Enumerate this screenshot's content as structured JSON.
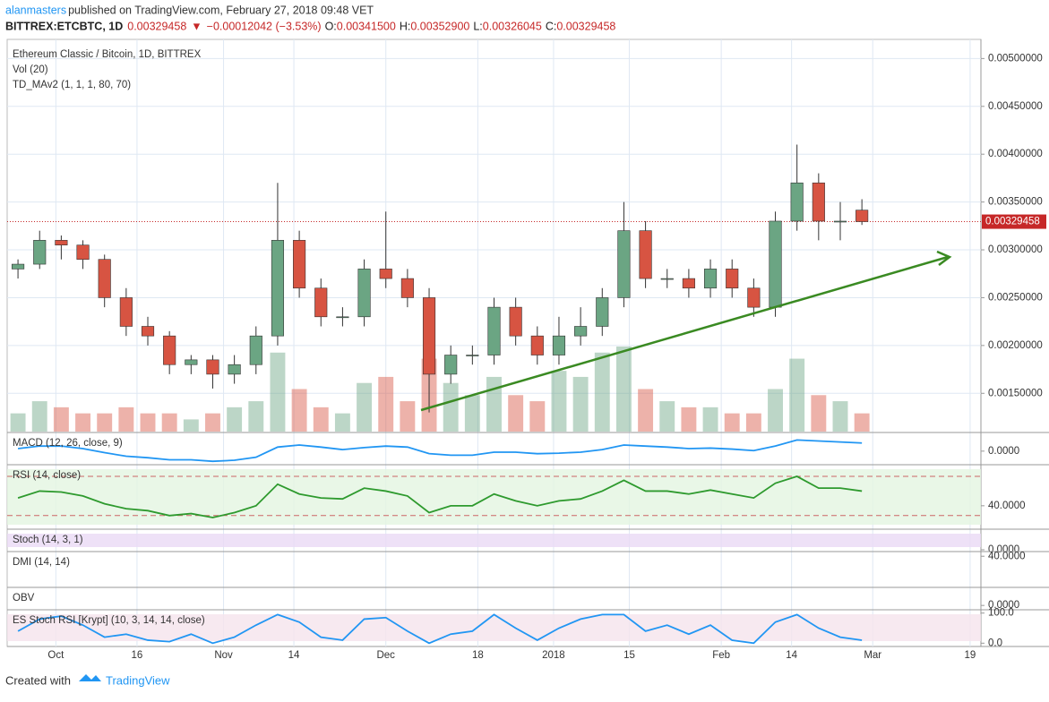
{
  "header": {
    "author": "alanmasters",
    "published": " published on TradingView.com, February 27, 2018 09:48 VET",
    "symbol": "BITTREX:ETCBTC, 1D",
    "price": "0.00329458",
    "arrow": "▼",
    "change": "−0.00012042 (−3.53%)",
    "ohlc": [
      {
        "key": "O:",
        "value": "0.00341500"
      },
      {
        "key": "H:",
        "value": "0.00352900"
      },
      {
        "key": "L:",
        "value": "0.00326045"
      },
      {
        "key": "C:",
        "value": "0.00329458"
      }
    ]
  },
  "footer": {
    "created": "Created with",
    "brand": "TradingView"
  },
  "chart_data": {
    "type": "candlestick",
    "legend": [
      "Ethereum Classic / Bitcoin, 1D, BITTREX",
      "Vol (20)",
      "TD_MAv2 (1, 1, 1, 80, 70)"
    ],
    "x": [
      -7,
      -3,
      1,
      5,
      9,
      13,
      17,
      21,
      25,
      29,
      33,
      37,
      41,
      45,
      49,
      53,
      57,
      61,
      65,
      69,
      73,
      77,
      81,
      85,
      89,
      93,
      97,
      101,
      105,
      109,
      113,
      117,
      121,
      125,
      129,
      133,
      137,
      141,
      145,
      149
    ],
    "open": [
      0.0028,
      0.00285,
      0.0031,
      0.00305,
      0.0029,
      0.0025,
      0.0022,
      0.0021,
      0.0018,
      0.00185,
      0.0017,
      0.0018,
      0.0021,
      0.0031,
      0.0026,
      0.0023,
      0.0023,
      0.0028,
      0.0027,
      0.0025,
      0.0017,
      0.0019,
      0.0019,
      0.0024,
      0.0021,
      0.0019,
      0.0021,
      0.0022,
      0.0025,
      0.0032,
      0.0027,
      0.0027,
      0.0026,
      0.0028,
      0.0026,
      0.0024,
      0.0033,
      0.0037,
      0.0033,
      0.003415
    ],
    "high": [
      0.0029,
      0.0032,
      0.00315,
      0.0031,
      0.00295,
      0.0026,
      0.0023,
      0.00215,
      0.0019,
      0.0019,
      0.0019,
      0.0022,
      0.0037,
      0.0032,
      0.0027,
      0.0024,
      0.0029,
      0.0034,
      0.0028,
      0.0026,
      0.002,
      0.002,
      0.0025,
      0.0025,
      0.0022,
      0.0023,
      0.0024,
      0.0026,
      0.0035,
      0.0033,
      0.0028,
      0.0028,
      0.0029,
      0.0029,
      0.0027,
      0.0034,
      0.0041,
      0.0038,
      0.0035,
      0.003529
    ],
    "low": [
      0.0027,
      0.0028,
      0.0029,
      0.0028,
      0.0024,
      0.0021,
      0.002,
      0.0017,
      0.0017,
      0.00155,
      0.0016,
      0.0017,
      0.002,
      0.0025,
      0.0022,
      0.0022,
      0.0022,
      0.0026,
      0.0024,
      0.0013,
      0.0016,
      0.0018,
      0.0018,
      0.002,
      0.0018,
      0.0018,
      0.002,
      0.0021,
      0.0024,
      0.0026,
      0.0026,
      0.0025,
      0.0025,
      0.0025,
      0.0023,
      0.0023,
      0.0032,
      0.0031,
      0.0031,
      0.00326045
    ],
    "close": [
      0.00285,
      0.0031,
      0.00305,
      0.0029,
      0.0025,
      0.0022,
      0.0021,
      0.0018,
      0.00185,
      0.0017,
      0.0018,
      0.0021,
      0.0031,
      0.0026,
      0.0023,
      0.0023,
      0.0028,
      0.0027,
      0.0025,
      0.0017,
      0.0019,
      0.0019,
      0.0024,
      0.0021,
      0.0019,
      0.0021,
      0.0022,
      0.0025,
      0.0032,
      0.0027,
      0.0027,
      0.0026,
      0.0028,
      0.0026,
      0.0024,
      0.0033,
      0.0037,
      0.0033,
      0.0033,
      0.00329458
    ],
    "volume": [
      3,
      5,
      4,
      3,
      3,
      4,
      3,
      3,
      2,
      3,
      4,
      5,
      13,
      7,
      4,
      3,
      8,
      9,
      5,
      12,
      8,
      6,
      9,
      6,
      5,
      10,
      9,
      13,
      14,
      7,
      5,
      4,
      4,
      3,
      3,
      7,
      12,
      6,
      5,
      3
    ],
    "up_color": "#6ba583",
    "down_color": "#d75442",
    "xlim": [
      -9,
      171
    ],
    "ylim": [
      0.0011,
      0.0052
    ],
    "xticks": [
      {
        "value": 0,
        "label": "Oct"
      },
      {
        "value": 15,
        "label": "16"
      },
      {
        "value": 31,
        "label": "Nov"
      },
      {
        "value": 44,
        "label": "14"
      },
      {
        "value": 61,
        "label": "Dec"
      },
      {
        "value": 78,
        "label": "18"
      },
      {
        "value": 92,
        "label": "2018"
      },
      {
        "value": 106,
        "label": "15"
      },
      {
        "value": 123,
        "label": "Feb"
      },
      {
        "value": 136,
        "label": "14"
      },
      {
        "value": 151,
        "label": "Mar"
      },
      {
        "value": 169,
        "label": "19"
      }
    ],
    "yticks": [
      {
        "value": 0.0015,
        "label": "0.00150000"
      },
      {
        "value": 0.002,
        "label": "0.00200000"
      },
      {
        "value": 0.0025,
        "label": "0.00250000"
      },
      {
        "value": 0.003,
        "label": "0.00300000"
      },
      {
        "value": 0.0035,
        "label": "0.00350000"
      },
      {
        "value": 0.004,
        "label": "0.00400000"
      },
      {
        "value": 0.0045,
        "label": "0.00450000"
      },
      {
        "value": 0.005,
        "label": "0.00500000"
      }
    ],
    "last_price": {
      "value": 0.00329458,
      "label": "0.00329458"
    },
    "grid": true,
    "panes": [
      {
        "label": "MACD (12, 26, close, 9)",
        "ylim": [
          -0.00025,
          0.00035
        ],
        "yticks": [
          {
            "value": 0,
            "label": "0.0000"
          }
        ],
        "color": "#2196f3",
        "values": [
          5e-05,
          0.0001,
          0.0001,
          5e-05,
          -3e-05,
          -0.0001,
          -0.00013,
          -0.00017,
          -0.00017,
          -0.0002,
          -0.00018,
          -0.00012,
          8e-05,
          0.00012,
          8e-05,
          3e-05,
          7e-05,
          0.0001,
          8e-05,
          -5e-05,
          -8e-05,
          -8e-05,
          -2e-05,
          -2e-05,
          -5e-05,
          -4e-05,
          -2e-05,
          3e-05,
          0.00012,
          0.0001,
          8e-05,
          5e-05,
          6e-05,
          4e-05,
          1e-05,
          0.0001,
          0.00022,
          0.0002,
          0.00018,
          0.00016
        ]
      },
      {
        "label": "RSI (14, close)",
        "ylim": [
          17,
          81
        ],
        "yticks": [
          {
            "value": 40,
            "label": "40.0000"
          }
        ],
        "color": "#2e9a2e",
        "bands": [
          30,
          70
        ],
        "values": [
          48,
          55,
          54,
          50,
          42,
          37,
          35,
          30,
          32,
          28,
          33,
          40,
          62,
          52,
          48,
          47,
          58,
          55,
          50,
          33,
          40,
          40,
          52,
          45,
          40,
          45,
          47,
          55,
          66,
          55,
          55,
          52,
          56,
          52,
          48,
          63,
          70,
          58,
          58,
          55
        ]
      },
      {
        "label": "Stoch (14, 3, 1)",
        "ylim": [
          -5,
          110
        ],
        "yticks": [
          {
            "value": 0,
            "label": "0.0000"
          }
        ]
      },
      {
        "label": "DMI (14, 14)",
        "ylim": [
          0,
          45
        ],
        "yticks": [
          {
            "value": 40,
            "label": "40.0000"
          }
        ]
      },
      {
        "label": "OBV",
        "ylim": [
          -20,
          100
        ],
        "yticks": [
          {
            "value": 0,
            "label": "0.0000"
          }
        ]
      },
      {
        "label": "ES Stoch RSI [Krypt] (10, 3, 14, 14, close)",
        "ylim": [
          -5,
          108
        ],
        "yticks": [
          {
            "value": 100,
            "label": "100.0"
          },
          {
            "value": 0,
            "label": "0.0"
          }
        ],
        "color": "#2196f3",
        "values": [
          40,
          80,
          90,
          60,
          20,
          30,
          10,
          5,
          30,
          0,
          20,
          60,
          95,
          70,
          20,
          10,
          80,
          85,
          40,
          0,
          30,
          40,
          95,
          50,
          10,
          50,
          80,
          95,
          95,
          40,
          60,
          30,
          60,
          10,
          0,
          70,
          95,
          50,
          20,
          10
        ]
      }
    ]
  }
}
